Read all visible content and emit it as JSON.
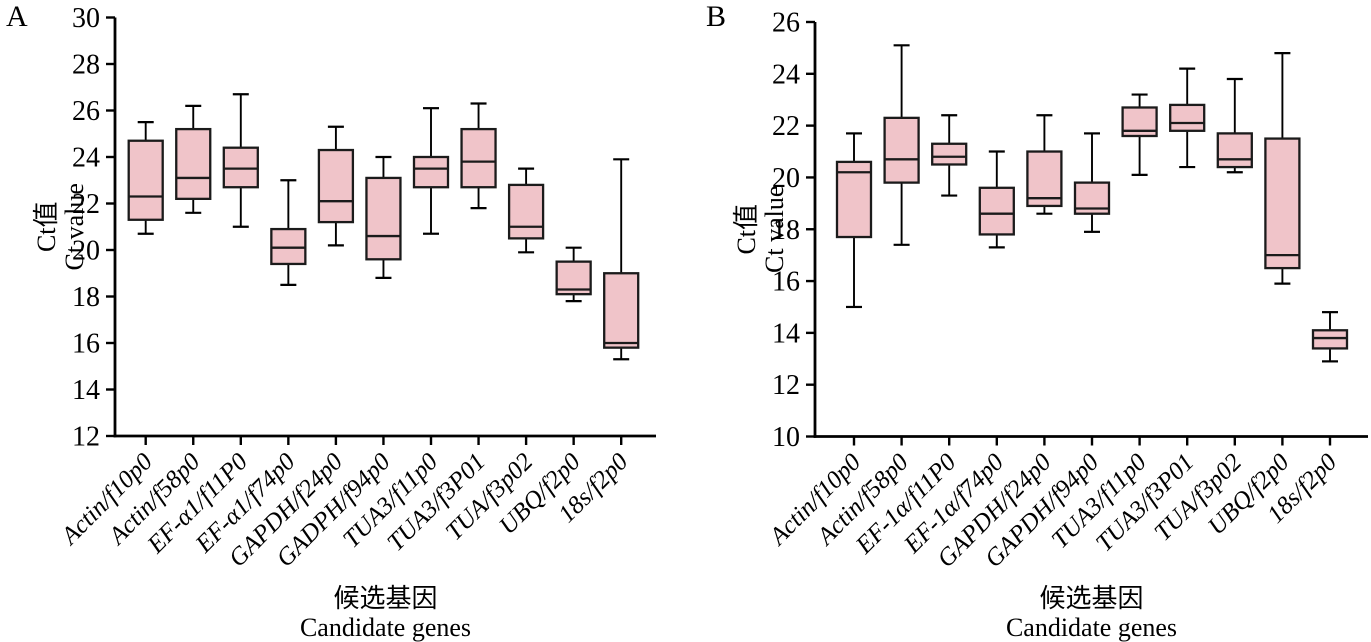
{
  "chart_data": [
    {
      "type": "box",
      "panel_label": "A",
      "title": "",
      "ylabel_lines": [
        "Ct值",
        "Ct value"
      ],
      "xlabel_lines": [
        "候选基因",
        "Candidate genes"
      ],
      "ylim": [
        12,
        30
      ],
      "yticks": [
        12,
        14,
        16,
        18,
        20,
        22,
        24,
        26,
        28,
        30
      ],
      "grid": false,
      "box_fill": "#f0c4c9",
      "box_stroke": "#1b1b1b",
      "axis_color": "#000000",
      "categories": [
        "Actin/f10p0",
        "Actin/f58p0",
        "EF-α1/f11P0",
        "EF-α1/f74p0",
        "GAPDH/f24p0",
        "GADPH/f94p0",
        "TUA3/f11p0",
        "TUA3/f3P01",
        "TUA/f3p02",
        "UBQ/f2p0",
        "18s/f2p0"
      ],
      "boxes": [
        {
          "whisker_low": 20.7,
          "q1": 21.3,
          "median": 22.3,
          "q3": 24.7,
          "whisker_high": 25.5
        },
        {
          "whisker_low": 21.6,
          "q1": 22.2,
          "median": 23.1,
          "q3": 25.2,
          "whisker_high": 26.2
        },
        {
          "whisker_low": 21.0,
          "q1": 22.7,
          "median": 23.5,
          "q3": 24.4,
          "whisker_high": 26.7
        },
        {
          "whisker_low": 18.5,
          "q1": 19.4,
          "median": 20.1,
          "q3": 20.9,
          "whisker_high": 23.0
        },
        {
          "whisker_low": 20.2,
          "q1": 21.2,
          "median": 22.1,
          "q3": 24.3,
          "whisker_high": 25.3
        },
        {
          "whisker_low": 18.8,
          "q1": 19.6,
          "median": 20.6,
          "q3": 23.1,
          "whisker_high": 24.0
        },
        {
          "whisker_low": 20.7,
          "q1": 22.7,
          "median": 23.5,
          "q3": 24.0,
          "whisker_high": 26.1
        },
        {
          "whisker_low": 21.8,
          "q1": 22.7,
          "median": 23.8,
          "q3": 25.2,
          "whisker_high": 26.3
        },
        {
          "whisker_low": 19.9,
          "q1": 20.5,
          "median": 21.0,
          "q3": 22.8,
          "whisker_high": 23.5
        },
        {
          "whisker_low": 17.8,
          "q1": 18.1,
          "median": 18.3,
          "q3": 19.5,
          "whisker_high": 20.1
        },
        {
          "whisker_low": 15.3,
          "q1": 15.8,
          "median": 16.0,
          "q3": 19.0,
          "whisker_high": 23.9
        }
      ]
    },
    {
      "type": "box",
      "panel_label": "B",
      "title": "",
      "ylabel_lines": [
        "Ct值",
        "Ct value"
      ],
      "xlabel_lines": [
        "候选基因",
        "Candidate genes"
      ],
      "ylim": [
        10,
        26
      ],
      "yticks": [
        10,
        12,
        14,
        16,
        18,
        20,
        22,
        24,
        26
      ],
      "grid": false,
      "box_fill": "#f0c4c9",
      "box_stroke": "#1b1b1b",
      "axis_color": "#000000",
      "categories": [
        "Actin/f10p0",
        "Actin/f58p0",
        "EF-1α/f11P0",
        "EF-1α/f74p0",
        "GAPDH/f24p0",
        "GAPDH/f94p0",
        "TUA3/f11p0",
        "TUA3/f3P01",
        "TUA/f3p02",
        "UBQ/f2p0",
        "18s/f2p0"
      ],
      "boxes": [
        {
          "whisker_low": 15.0,
          "q1": 17.7,
          "median": 20.2,
          "q3": 20.6,
          "whisker_high": 21.7
        },
        {
          "whisker_low": 17.4,
          "q1": 19.8,
          "median": 20.7,
          "q3": 22.3,
          "whisker_high": 25.1
        },
        {
          "whisker_low": 19.3,
          "q1": 20.5,
          "median": 20.8,
          "q3": 21.3,
          "whisker_high": 22.4
        },
        {
          "whisker_low": 17.3,
          "q1": 17.8,
          "median": 18.6,
          "q3": 19.6,
          "whisker_high": 21.0
        },
        {
          "whisker_low": 18.6,
          "q1": 18.9,
          "median": 19.2,
          "q3": 21.0,
          "whisker_high": 22.4
        },
        {
          "whisker_low": 17.9,
          "q1": 18.6,
          "median": 18.8,
          "q3": 19.8,
          "whisker_high": 21.7
        },
        {
          "whisker_low": 20.1,
          "q1": 21.6,
          "median": 21.8,
          "q3": 22.7,
          "whisker_high": 23.2
        },
        {
          "whisker_low": 20.4,
          "q1": 21.8,
          "median": 22.1,
          "q3": 22.8,
          "whisker_high": 24.2
        },
        {
          "whisker_low": 20.2,
          "q1": 20.4,
          "median": 20.7,
          "q3": 21.7,
          "whisker_high": 23.8
        },
        {
          "whisker_low": 15.9,
          "q1": 16.5,
          "median": 17.0,
          "q3": 21.5,
          "whisker_high": 24.8
        },
        {
          "whisker_low": 12.9,
          "q1": 13.4,
          "median": 13.8,
          "q3": 14.1,
          "whisker_high": 14.8
        }
      ]
    }
  ]
}
